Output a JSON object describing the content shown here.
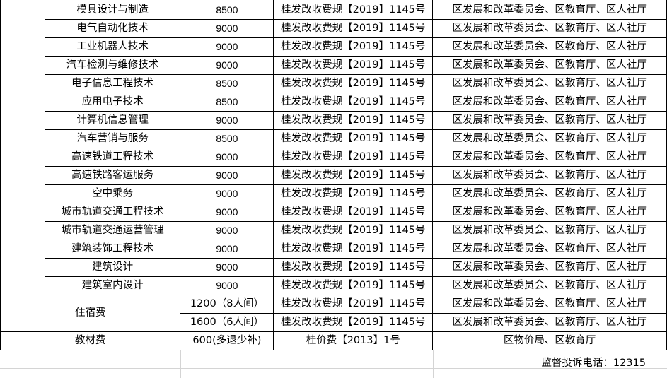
{
  "programs": [
    {
      "name": "模具设计与制造",
      "fee": "8500",
      "doc": "桂发改收费规【2019】1145号",
      "authority": "区发展和改革委员会、区教育厅、区人社厅"
    },
    {
      "name": "电气自动化技术",
      "fee": "9000",
      "doc": "桂发改收费规【2019】1145号",
      "authority": "区发展和改革委员会、区教育厅、区人社厅"
    },
    {
      "name": "工业机器人技术",
      "fee": "9000",
      "doc": "桂发改收费规【2019】1145号",
      "authority": "区发展和改革委员会、区教育厅、区人社厅"
    },
    {
      "name": "汽车检测与维修技术",
      "fee": "9000",
      "doc": "桂发改收费规【2019】1145号",
      "authority": "区发展和改革委员会、区教育厅、区人社厅"
    },
    {
      "name": "电子信息工程技术",
      "fee": "8500",
      "doc": "桂发改收费规【2019】1145号",
      "authority": "区发展和改革委员会、区教育厅、区人社厅"
    },
    {
      "name": "应用电子技术",
      "fee": "8500",
      "doc": "桂发改收费规【2019】1145号",
      "authority": "区发展和改革委员会、区教育厅、区人社厅"
    },
    {
      "name": "计算机信息管理",
      "fee": "9000",
      "doc": "桂发改收费规【2019】1145号",
      "authority": "区发展和改革委员会、区教育厅、区人社厅"
    },
    {
      "name": "汽车营销与服务",
      "fee": "8500",
      "doc": "桂发改收费规【2019】1145号",
      "authority": "区发展和改革委员会、区教育厅、区人社厅"
    },
    {
      "name": "高速铁道工程技术",
      "fee": "9000",
      "doc": "桂发改收费规【2019】1145号",
      "authority": "区发展和改革委员会、区教育厅、区人社厅"
    },
    {
      "name": "高速铁路客运服务",
      "fee": "9000",
      "doc": "桂发改收费规【2019】1145号",
      "authority": "区发展和改革委员会、区教育厅、区人社厅"
    },
    {
      "name": "空中乘务",
      "fee": "9000",
      "doc": "桂发改收费规【2019】1145号",
      "authority": "区发展和改革委员会、区教育厅、区人社厅"
    },
    {
      "name": "城市轨道交通工程技术",
      "fee": "9000",
      "doc": "桂发改收费规【2019】1145号",
      "authority": "区发展和改革委员会、区教育厅、区人社厅"
    },
    {
      "name": "城市轨道交通运营管理",
      "fee": "9000",
      "doc": "桂发改收费规【2019】1145号",
      "authority": "区发展和改革委员会、区教育厅、区人社厅"
    },
    {
      "name": "建筑装饰工程技术",
      "fee": "9000",
      "doc": "桂发改收费规【2019】1145号",
      "authority": "区发展和改革委员会、区教育厅、区人社厅"
    },
    {
      "name": "建筑设计",
      "fee": "9000",
      "doc": "桂发改收费规【2019】1145号",
      "authority": "区发展和改革委员会、区教育厅、区人社厅"
    },
    {
      "name": "建筑室内设计",
      "fee": "9000",
      "doc": "桂发改收费规【2019】1145号",
      "authority": "区发展和改革委员会、区教育厅、区人社厅"
    }
  ],
  "accommodation": {
    "label": "住宿费",
    "rows": [
      {
        "fee": "1200（8人间）",
        "doc": "桂发改收费规【2019】1145号",
        "authority": "区发展和改革委员会、区教育厅、区人社厅"
      },
      {
        "fee": "1600（6人间）",
        "doc": "桂发改收费规【2019】1145号",
        "authority": "区发展和改革委员会、区教育厅、区人社厅"
      }
    ]
  },
  "textbook": {
    "label": "教材费",
    "fee": "600(多退少补)",
    "doc": "桂价费【2013】1号",
    "authority": "区物价局、区教育厅"
  },
  "footer": {
    "phone": "监督投诉电话：12315"
  }
}
